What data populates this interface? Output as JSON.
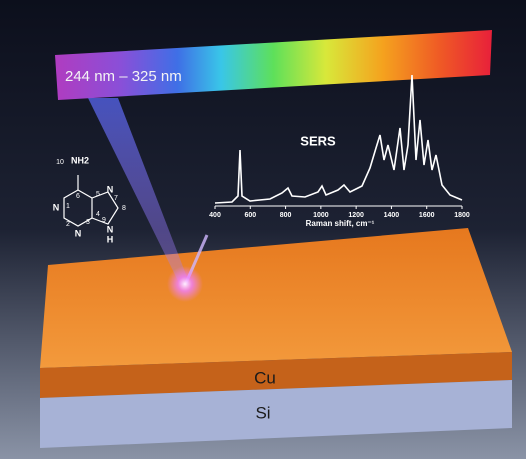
{
  "spectrum_bar": {
    "label": "244 nm – 325 nm"
  },
  "spectrum": {
    "title": "SERS",
    "x_ticks": [
      400,
      600,
      800,
      1000,
      1200,
      1400,
      1600,
      1800
    ],
    "x_label": "Raman shift, cm⁻¹"
  },
  "molecule": {
    "atoms": [
      "10",
      "NH2",
      "6",
      "5",
      "N",
      "7",
      "8",
      "N",
      "1",
      "2",
      "N",
      "3",
      "4",
      "N",
      "9",
      "H"
    ]
  },
  "layers": [
    "Cu",
    "Si"
  ]
}
